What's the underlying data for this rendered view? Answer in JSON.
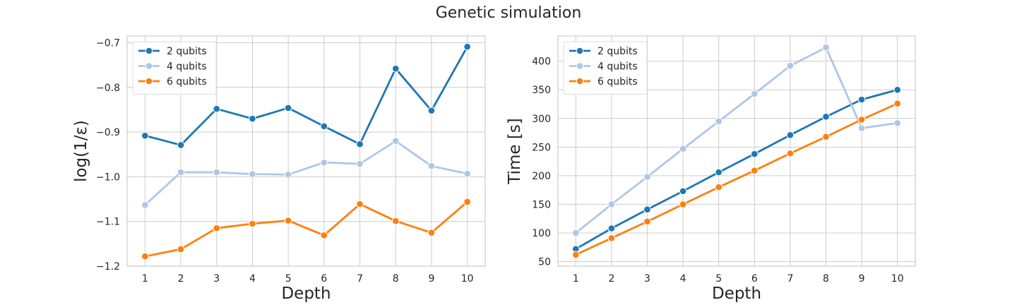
{
  "suptitle": "Genetic simulation",
  "colors": {
    "2 qubits": "#1f77b4",
    "4 qubits": "#aec7e8",
    "6 qubits": "#ff7f0e"
  },
  "chart_data": [
    {
      "type": "line",
      "xlabel": "Depth",
      "ylabel": "log(1/ε)",
      "x": [
        1,
        2,
        3,
        4,
        5,
        6,
        7,
        8,
        9,
        10
      ],
      "xlim": [
        0.5,
        10.5
      ],
      "ylim": [
        -1.2,
        -0.685
      ],
      "yticks": [
        -1.2,
        -1.1,
        -1.0,
        -0.9,
        -0.8,
        -0.7
      ],
      "ytick_labels": [
        "−1.2",
        "−1.1",
        "−1.0",
        "−0.9",
        "−0.8",
        "−0.7"
      ],
      "grid": true,
      "legend": "top-left",
      "series": [
        {
          "name": "2 qubits",
          "values": [
            -0.908,
            -0.929,
            -0.848,
            -0.87,
            -0.846,
            -0.887,
            -0.927,
            -0.758,
            -0.852,
            -0.709
          ]
        },
        {
          "name": "4 qubits",
          "values": [
            -1.063,
            -0.99,
            -0.99,
            -0.994,
            -0.995,
            -0.968,
            -0.971,
            -0.92,
            -0.976,
            -0.993
          ]
        },
        {
          "name": "6 qubits",
          "values": [
            -1.178,
            -1.162,
            -1.115,
            -1.105,
            -1.098,
            -1.131,
            -1.061,
            -1.099,
            -1.125,
            -1.056
          ]
        }
      ]
    },
    {
      "type": "line",
      "xlabel": "Depth",
      "ylabel": "Time [s]",
      "x": [
        1,
        2,
        3,
        4,
        5,
        6,
        7,
        8,
        9,
        10
      ],
      "xlim": [
        0.5,
        10.5
      ],
      "ylim": [
        42,
        444
      ],
      "yticks": [
        50,
        100,
        150,
        200,
        250,
        300,
        350,
        400
      ],
      "ytick_labels": [
        "50",
        "100",
        "150",
        "200",
        "250",
        "300",
        "350",
        "400"
      ],
      "grid": true,
      "legend": "top-left",
      "series": [
        {
          "name": "2 qubits",
          "values": [
            72,
            108,
            141,
            173,
            206,
            238,
            271,
            303,
            333,
            350
          ]
        },
        {
          "name": "4 qubits",
          "values": [
            100,
            150,
            198,
            247,
            295,
            343,
            392,
            424,
            283,
            292
          ]
        },
        {
          "name": "6 qubits",
          "values": [
            62,
            91,
            120,
            150,
            180,
            209,
            239,
            268,
            298,
            326
          ]
        }
      ]
    }
  ]
}
